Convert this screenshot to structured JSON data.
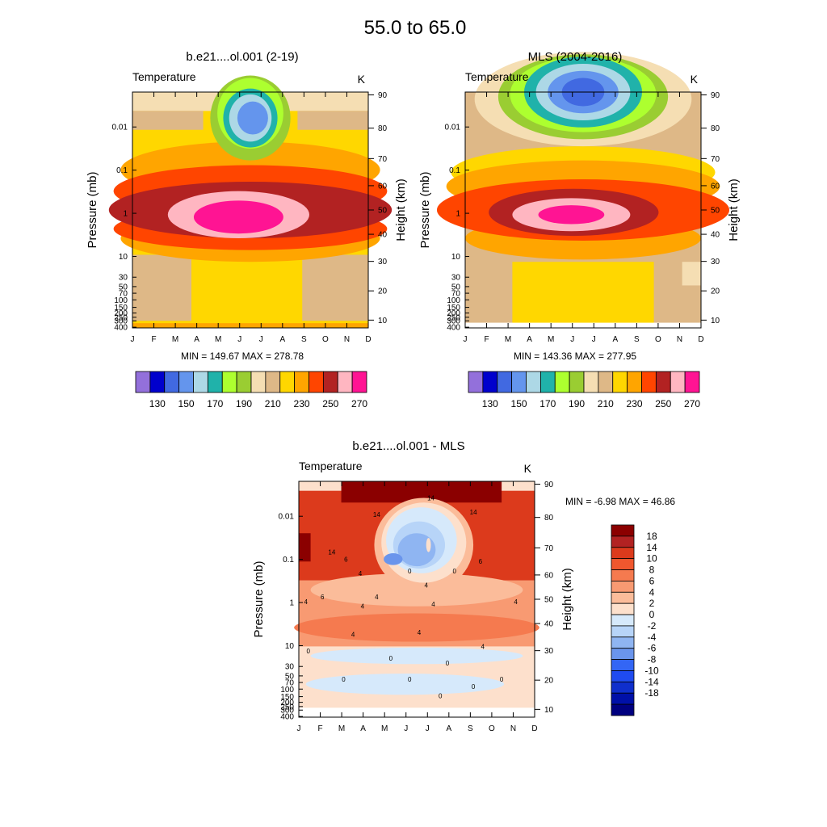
{
  "figure": {
    "main_title": "55.0 to  65.0"
  },
  "chart_data": [
    {
      "type": "heatmap",
      "panel": "model",
      "title": "b.e21....ol.001 (2-19)",
      "left_label": "Temperature",
      "unit_label": "K",
      "xlabel": "",
      "ylabel": "Pressure (mb)",
      "right_label": "Height (km)",
      "x_ticks": [
        "J",
        "F",
        "M",
        "A",
        "M",
        "J",
        "J",
        "A",
        "S",
        "O",
        "N",
        "D"
      ],
      "y_ticks": [
        "0.01",
        "0.1",
        "1",
        "10",
        "30",
        "50",
        "70",
        "100",
        "150",
        "200",
        "250",
        "300",
        "400"
      ],
      "right_ticks": [
        "90",
        "80",
        "70",
        "60",
        "50",
        "40",
        "30",
        "20",
        "10"
      ],
      "stats_label": "MIN = 149.67  MAX = 278.78",
      "min": 149.67,
      "max": 278.78,
      "colorbar": {
        "colors": [
          "#9370DB",
          "#0000CD",
          "#4169E1",
          "#6495ED",
          "#ADD8E6",
          "#20B2AA",
          "#ADFF2F",
          "#9ACD32",
          "#F5DEB3",
          "#DEB887",
          "#FFD700",
          "#FFA500",
          "#FF4500",
          "#B22222",
          "#FFB6C1",
          "#FF1493"
        ],
        "labels": [
          "130",
          "150",
          "170",
          "190",
          "210",
          "230",
          "250",
          "270"
        ]
      }
    },
    {
      "type": "heatmap",
      "panel": "observed",
      "title": "MLS (2004-2016)",
      "left_label": "Temperature",
      "unit_label": "K",
      "xlabel": "",
      "ylabel": "Pressure (mb)",
      "right_label": "Height (km)",
      "x_ticks": [
        "J",
        "F",
        "M",
        "A",
        "M",
        "J",
        "J",
        "A",
        "S",
        "O",
        "N",
        "D"
      ],
      "y_ticks": [
        "0.01",
        "0.1",
        "1",
        "10",
        "30",
        "50",
        "70",
        "100",
        "150",
        "200",
        "250",
        "300",
        "400"
      ],
      "right_ticks": [
        "90",
        "80",
        "70",
        "60",
        "50",
        "40",
        "30",
        "20",
        "10"
      ],
      "stats_label": "MIN = 143.36  MAX = 277.95",
      "min": 143.36,
      "max": 277.95,
      "colorbar": {
        "colors": [
          "#9370DB",
          "#0000CD",
          "#4169E1",
          "#6495ED",
          "#ADD8E6",
          "#20B2AA",
          "#ADFF2F",
          "#9ACD32",
          "#F5DEB3",
          "#DEB887",
          "#FFD700",
          "#FFA500",
          "#FF4500",
          "#B22222",
          "#FFB6C1",
          "#FF1493"
        ],
        "labels": [
          "130",
          "150",
          "170",
          "190",
          "210",
          "230",
          "250",
          "270"
        ]
      }
    },
    {
      "type": "heatmap",
      "panel": "difference",
      "title": "b.e21....ol.001 - MLS",
      "left_label": "Temperature",
      "unit_label": "K",
      "xlabel": "",
      "ylabel": "Pressure (mb)",
      "right_label": "Height (km)",
      "x_ticks": [
        "J",
        "F",
        "M",
        "A",
        "M",
        "J",
        "J",
        "A",
        "S",
        "O",
        "N",
        "D"
      ],
      "y_ticks": [
        "0.01",
        "0.1",
        "1",
        "10",
        "30",
        "50",
        "70",
        "100",
        "150",
        "200",
        "250",
        "300",
        "400"
      ],
      "right_ticks": [
        "90",
        "80",
        "70",
        "60",
        "50",
        "40",
        "30",
        "20",
        "10"
      ],
      "stats_label": "MIN =  -6.98  MAX =  46.86",
      "min": -6.98,
      "max": 46.86,
      "contour_labels": [
        "14",
        "14",
        "14",
        "14",
        "6",
        "6",
        "6",
        "4",
        "4",
        "4",
        "4",
        "4",
        "4",
        "4",
        "4",
        "4",
        "4",
        "0",
        "0",
        "0",
        "0",
        "0",
        "0",
        "0",
        "0",
        "0",
        "0"
      ],
      "colorbar": {
        "colors": [
          "#8B0000",
          "#B22222",
          "#DC3A1C",
          "#F0572E",
          "#F57A4F",
          "#F89A72",
          "#FBBC9A",
          "#FDE0CC",
          "#D6E9FB",
          "#B7D4F8",
          "#8FB5F2",
          "#6A95EC",
          "#3366F5",
          "#1F4BF0",
          "#0F2FCC",
          "#0010A8",
          "#000080"
        ],
        "labels": [
          "18",
          "14",
          "10",
          "8",
          "6",
          "4",
          "2",
          "0",
          "-2",
          "-4",
          "-6",
          "-8",
          "-10",
          "-14",
          "-18"
        ]
      }
    }
  ]
}
